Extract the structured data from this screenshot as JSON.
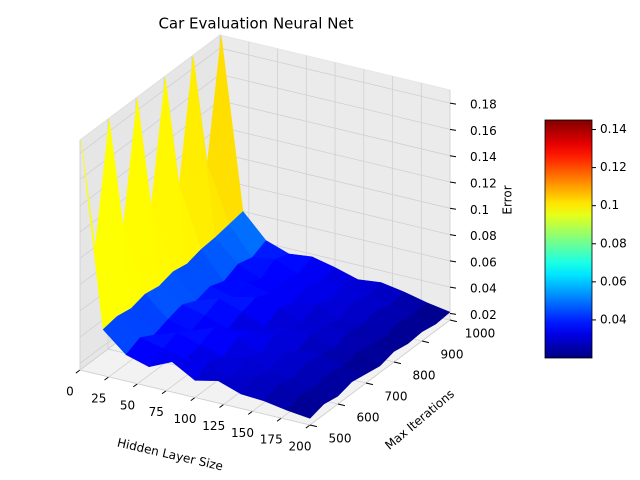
{
  "chart_data": {
    "type": "surface",
    "title": "Car Evaluation Neural Net",
    "xlabel": "Hidden Layer Size",
    "ylabel": "Max Iterations",
    "zlabel": "Error",
    "x": [
      1,
      20,
      40,
      60,
      80,
      100,
      120,
      140,
      160,
      180,
      200
    ],
    "y": [
      500,
      550,
      600,
      650,
      700,
      750,
      800,
      850,
      900,
      950,
      1000
    ],
    "z": [
      [
        0.19,
        0.1,
        0.19,
        0.1,
        0.19,
        0.1,
        0.19,
        0.1,
        0.19,
        0.1,
        0.19
      ],
      [
        0.05,
        0.052,
        0.05,
        0.053,
        0.051,
        0.054,
        0.052,
        0.055,
        0.056,
        0.058,
        0.06
      ],
      [
        0.035,
        0.04,
        0.034,
        0.038,
        0.041,
        0.036,
        0.039,
        0.035,
        0.04,
        0.037,
        0.042
      ],
      [
        0.03,
        0.036,
        0.04,
        0.033,
        0.037,
        0.042,
        0.035,
        0.038,
        0.033,
        0.04,
        0.036
      ],
      [
        0.038,
        0.032,
        0.035,
        0.04,
        0.031,
        0.036,
        0.039,
        0.034,
        0.037,
        0.033,
        0.038
      ],
      [
        0.028,
        0.034,
        0.03,
        0.036,
        0.033,
        0.029,
        0.035,
        0.031,
        0.036,
        0.032,
        0.034
      ],
      [
        0.032,
        0.027,
        0.033,
        0.029,
        0.035,
        0.031,
        0.028,
        0.034,
        0.03,
        0.033,
        0.029
      ],
      [
        0.026,
        0.031,
        0.028,
        0.033,
        0.027,
        0.032,
        0.03,
        0.027,
        0.032,
        0.029,
        0.031
      ],
      [
        0.025,
        0.029,
        0.026,
        0.03,
        0.028,
        0.025,
        0.029,
        0.027,
        0.03,
        0.026,
        0.028
      ],
      [
        0.022,
        0.026,
        0.024,
        0.027,
        0.023,
        0.026,
        0.024,
        0.022,
        0.025,
        0.023,
        0.024
      ],
      [
        0.02,
        0.023,
        0.021,
        0.024,
        0.022,
        0.02,
        0.023,
        0.021,
        0.022,
        0.02,
        0.021
      ]
    ],
    "xlim": [
      0,
      200
    ],
    "xticks": [
      0,
      25,
      50,
      75,
      100,
      125,
      150,
      175,
      200
    ],
    "ylim": [
      500,
      1000
    ],
    "yticks": [
      500,
      600,
      700,
      800,
      900,
      1000
    ],
    "zlim": [
      0.015,
      0.19
    ],
    "zticks": [
      0.02,
      0.04,
      0.06,
      0.08,
      0.1,
      0.12,
      0.14,
      0.16,
      0.18
    ],
    "colormap": "jet",
    "clim": [
      0.02,
      0.145
    ],
    "cticks": [
      0.04,
      0.06,
      0.08,
      0.1,
      0.12,
      0.14
    ],
    "grid": true
  }
}
